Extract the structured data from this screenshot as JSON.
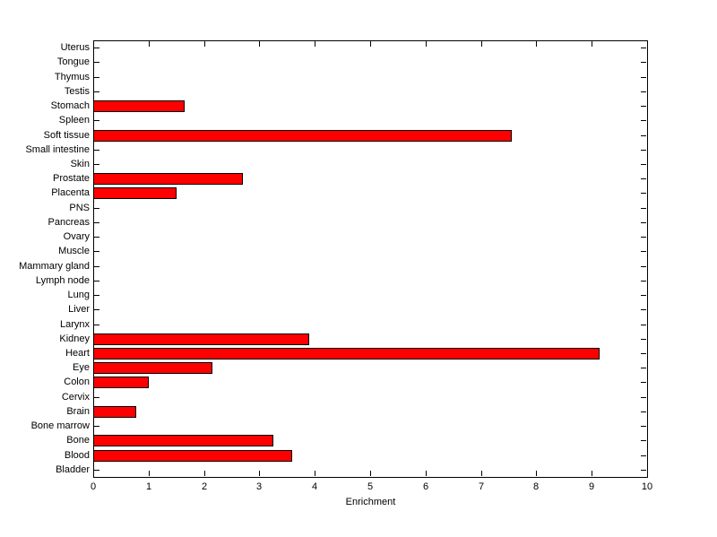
{
  "figure": {
    "background_color": "#FFFFFF",
    "axis_color": "#000000",
    "text_color": "#000000"
  },
  "chart_data": {
    "type": "bar",
    "orientation": "horizontal",
    "title": "",
    "xlabel": "Enrichment",
    "ylabel": "",
    "xlim": [
      0,
      10
    ],
    "xticks": [
      0,
      1,
      2,
      3,
      4,
      5,
      6,
      7,
      8,
      9,
      10
    ],
    "grid": false,
    "box": true,
    "bar_color": "#FF0000",
    "bar_edge_color": "#000000",
    "categories": [
      "Uterus",
      "Tongue",
      "Thymus",
      "Testis",
      "Stomach",
      "Spleen",
      "Soft tissue",
      "Small intestine",
      "Skin",
      "Prostate",
      "Placenta",
      "PNS",
      "Pancreas",
      "Ovary",
      "Muscle",
      "Mammary gland",
      "Lymph node",
      "Lung",
      "Liver",
      "Larynx",
      "Kidney",
      "Heart",
      "Eye",
      "Colon",
      "Cervix",
      "Brain",
      "Bone marrow",
      "Bone",
      "Blood",
      "Bladder"
    ],
    "values": [
      0,
      0,
      0,
      0,
      1.65,
      0,
      7.55,
      0,
      0,
      2.7,
      1.5,
      0,
      0,
      0,
      0,
      0,
      0,
      0,
      0,
      0,
      3.9,
      9.15,
      2.15,
      1.0,
      0,
      0.78,
      0,
      3.25,
      3.6,
      0
    ]
  }
}
